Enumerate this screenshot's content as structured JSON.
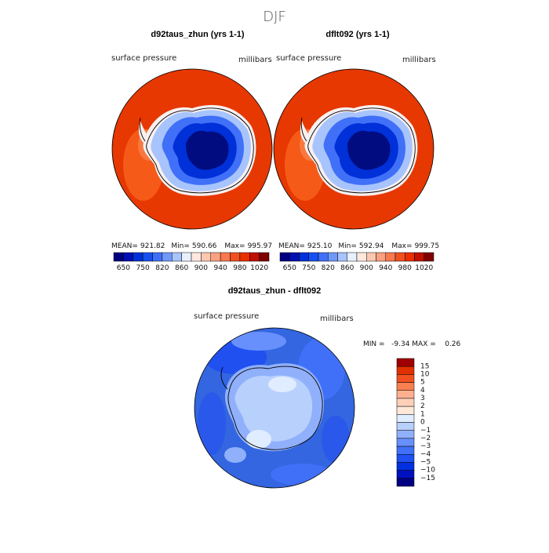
{
  "page_title": "DJF",
  "panels": [
    {
      "title": "d92taus_zhun (yrs 1-1)",
      "variable": "surface pressure",
      "units": "millibars",
      "stats": {
        "mean_label": "MEAN=",
        "mean": "921.82",
        "min_label": "Min=",
        "min": "590.66",
        "max_label": "Max=",
        "max": "995.97"
      }
    },
    {
      "title": "dflt092 (yrs 1-1)",
      "variable": "surface pressure",
      "units": "millibars",
      "stats": {
        "mean_label": "MEAN=",
        "mean": "925.10",
        "min_label": "Min=",
        "min": "592.94",
        "max_label": "Max=",
        "max": "999.75"
      }
    }
  ],
  "diff_panel": {
    "title": "d92taus_zhun - dflt092",
    "variable": "surface pressure",
    "units": "millibars",
    "minmax_text": "MIN =   -9.34 MAX =    0.26"
  },
  "colors": {
    "abs_scale": [
      "#000080",
      "#0010b0",
      "#0030d8",
      "#1850f0",
      "#4070f8",
      "#7098f8",
      "#a8c4fc",
      "#e8f0ff",
      "#ffe8e0",
      "#fcc8b0",
      "#fba080",
      "#f87850",
      "#f05020",
      "#e83000",
      "#c01000",
      "#800000"
    ],
    "diff_scale": [
      "#000080",
      "#0010c0",
      "#0030e0",
      "#2050f0",
      "#4070f8",
      "#6890fc",
      "#90b0fc",
      "#b8d0fc",
      "#e0ecff",
      "#ffe8d8",
      "#ffd0b8",
      "#fcb090",
      "#f88050",
      "#f05020",
      "#e03000",
      "#a00000"
    ],
    "ocean_abs": "#e63800",
    "continent_core": "#000c80",
    "diff_ocean": "#3366e0",
    "diff_land": "#b8d0fc"
  },
  "chart_data": [
    {
      "type": "heatmap",
      "title": "d92taus_zhun (yrs 1-1)",
      "projection": "south polar stereographic",
      "variable": "surface pressure",
      "units": "millibars",
      "mean": 921.82,
      "min": 590.66,
      "max": 995.97,
      "colorbar_labels": [
        "650",
        "750",
        "820",
        "860",
        "900",
        "940",
        "980",
        "1020"
      ]
    },
    {
      "type": "heatmap",
      "title": "dflt092 (yrs 1-1)",
      "projection": "south polar stereographic",
      "variable": "surface pressure",
      "units": "millibars",
      "mean": 925.1,
      "min": 592.94,
      "max": 999.75,
      "colorbar_labels": [
        "650",
        "750",
        "820",
        "860",
        "900",
        "940",
        "980",
        "1020"
      ]
    },
    {
      "type": "heatmap",
      "title": "d92taus_zhun - dflt092",
      "projection": "south polar stereographic",
      "variable": "surface pressure",
      "units": "millibars",
      "min": -9.34,
      "max": 0.26,
      "colorbar_labels": [
        "15",
        "10",
        "5",
        "4",
        "3",
        "2",
        "1",
        "0",
        "−1",
        "−2",
        "−3",
        "−4",
        "−5",
        "−10",
        "−15"
      ]
    }
  ]
}
